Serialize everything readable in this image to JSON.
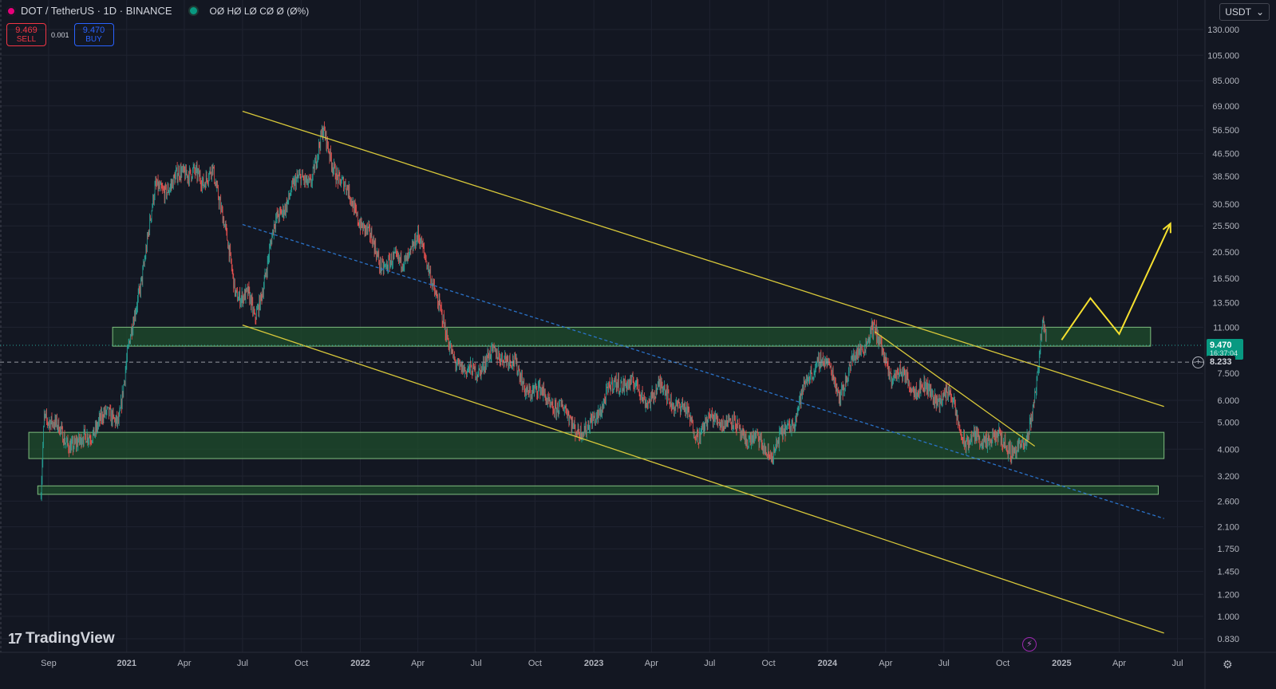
{
  "header": {
    "symbol": "DOT / TetherUS · 1D · BINANCE",
    "ohlc": "OØ HØ LØ CØ Ø (Ø%)",
    "currency": "USDT"
  },
  "trade": {
    "sell_price": "9.469",
    "sell_label": "SELL",
    "spread": "0.001",
    "buy_price": "9.470",
    "buy_label": "BUY"
  },
  "price_axis": {
    "ticks": [
      "130.000",
      "105.000",
      "85.000",
      "69.000",
      "56.500",
      "46.500",
      "38.500",
      "30.500",
      "25.500",
      "20.500",
      "16.500",
      "13.500",
      "11.000",
      "7.500",
      "6.000",
      "5.000",
      "4.000",
      "3.200",
      "2.600",
      "2.100",
      "1.750",
      "1.450",
      "1.200",
      "1.000",
      "0.830"
    ],
    "last_price": "9.470",
    "last_price_sub": "16:37:04",
    "line_price": "8.233"
  },
  "time_axis": {
    "labels": [
      "Sep",
      "2021",
      "Apr",
      "Jul",
      "Oct",
      "2022",
      "Apr",
      "Jul",
      "Oct",
      "2023",
      "Apr",
      "Jul",
      "Oct",
      "2024",
      "Apr",
      "Jul",
      "Oct",
      "2025",
      "Apr",
      "Jul"
    ]
  },
  "branding": {
    "name": "TradingView"
  },
  "colors": {
    "background": "#131722",
    "up": "#26a69a",
    "down": "#ef5350",
    "trendline": "#d8c83a",
    "zone_fill": "#1f4d2c",
    "zone_border": "#7fbf7f",
    "dashed_channel": "#2a72c8",
    "projection": "#f5e02f"
  },
  "chart_data": {
    "type": "candlestick",
    "x_range": [
      "2020-08",
      "2025-08"
    ],
    "y_scale": "log",
    "ylim": [
      0.8,
      140
    ],
    "price_path": [
      [
        "2020-08-20",
        2.9
      ],
      [
        "2020-08-25",
        5.5
      ],
      [
        "2020-09-10",
        4.8
      ],
      [
        "2020-09-25",
        4.4
      ],
      [
        "2020-10-20",
        4.1
      ],
      [
        "2020-11-20",
        5.1
      ],
      [
        "2020-12-20",
        5.3
      ],
      [
        "2021-01-05",
        9.3
      ],
      [
        "2021-01-25",
        17.5
      ],
      [
        "2021-02-15",
        34.0
      ],
      [
        "2021-03-15",
        36.5
      ],
      [
        "2021-04-15",
        42.0
      ],
      [
        "2021-05-01",
        34.0
      ],
      [
        "2021-05-15",
        44.0
      ],
      [
        "2021-06-01",
        26.0
      ],
      [
        "2021-06-20",
        15.0
      ],
      [
        "2021-07-10",
        14.0
      ],
      [
        "2021-07-20",
        11.5
      ],
      [
        "2021-08-20",
        25.0
      ],
      [
        "2021-09-15",
        35.0
      ],
      [
        "2021-10-15",
        38.0
      ],
      [
        "2021-11-04",
        54.0
      ],
      [
        "2021-12-01",
        37.0
      ],
      [
        "2022-01-01",
        27.0
      ],
      [
        "2022-02-01",
        19.0
      ],
      [
        "2022-03-01",
        18.5
      ],
      [
        "2022-04-01",
        22.5
      ],
      [
        "2022-04-20",
        18.0
      ],
      [
        "2022-05-15",
        10.0
      ],
      [
        "2022-06-15",
        7.3
      ],
      [
        "2022-07-15",
        8.3
      ],
      [
        "2022-08-15",
        9.0
      ],
      [
        "2022-09-15",
        6.8
      ],
      [
        "2022-10-15",
        6.2
      ],
      [
        "2022-11-20",
        5.3
      ],
      [
        "2022-12-20",
        4.5
      ],
      [
        "2023-01-20",
        6.3
      ],
      [
        "2023-02-20",
        7.2
      ],
      [
        "2023-03-20",
        6.1
      ],
      [
        "2023-04-20",
        6.6
      ],
      [
        "2023-05-20",
        5.5
      ],
      [
        "2023-06-15",
        4.6
      ],
      [
        "2023-07-15",
        5.3
      ],
      [
        "2023-08-20",
        4.6
      ],
      [
        "2023-09-20",
        4.1
      ],
      [
        "2023-10-10",
        3.9
      ],
      [
        "2023-11-10",
        5.3
      ],
      [
        "2023-12-20",
        8.8
      ],
      [
        "2024-01-20",
        6.5
      ],
      [
        "2024-03-10",
        11.0
      ],
      [
        "2024-04-10",
        7.5
      ],
      [
        "2024-05-10",
        7.0
      ],
      [
        "2024-06-10",
        6.3
      ],
      [
        "2024-07-10",
        6.2
      ],
      [
        "2024-08-05",
        4.2
      ],
      [
        "2024-09-05",
        4.4
      ],
      [
        "2024-10-05",
        4.2
      ],
      [
        "2024-11-05",
        3.9
      ],
      [
        "2024-11-20",
        6.5
      ],
      [
        "2024-12-03",
        11.5
      ],
      [
        "2024-12-08",
        9.47
      ]
    ],
    "zones": [
      {
        "from": "2020-12-10",
        "to": "2025-05-20",
        "low": 9.4,
        "high": 11.0
      },
      {
        "from": "2020-08-01",
        "to": "2025-06-10",
        "low": 3.7,
        "high": 4.6
      },
      {
        "from": "2020-08-15",
        "to": "2025-06-01",
        "low": 2.75,
        "high": 2.95
      }
    ],
    "trendlines": [
      {
        "style": "solid",
        "points": [
          [
            "2021-07-01",
            66
          ],
          [
            "2025-06-10",
            5.7
          ]
        ]
      },
      {
        "style": "solid",
        "points": [
          [
            "2021-07-01",
            11.2
          ],
          [
            "2025-06-10",
            0.87
          ]
        ]
      },
      {
        "style": "solid",
        "points": [
          [
            "2024-03-15",
            10.6
          ],
          [
            "2024-11-20",
            4.1
          ]
        ]
      },
      {
        "style": "dashed",
        "points": [
          [
            "2021-07-01",
            25.8
          ],
          [
            "2025-06-10",
            2.25
          ]
        ]
      }
    ],
    "projection": [
      [
        "2025-01-01",
        9.9
      ],
      [
        "2025-02-15",
        14.0
      ],
      [
        "2025-04-01",
        10.4
      ],
      [
        "2025-06-20",
        26.0
      ]
    ]
  }
}
